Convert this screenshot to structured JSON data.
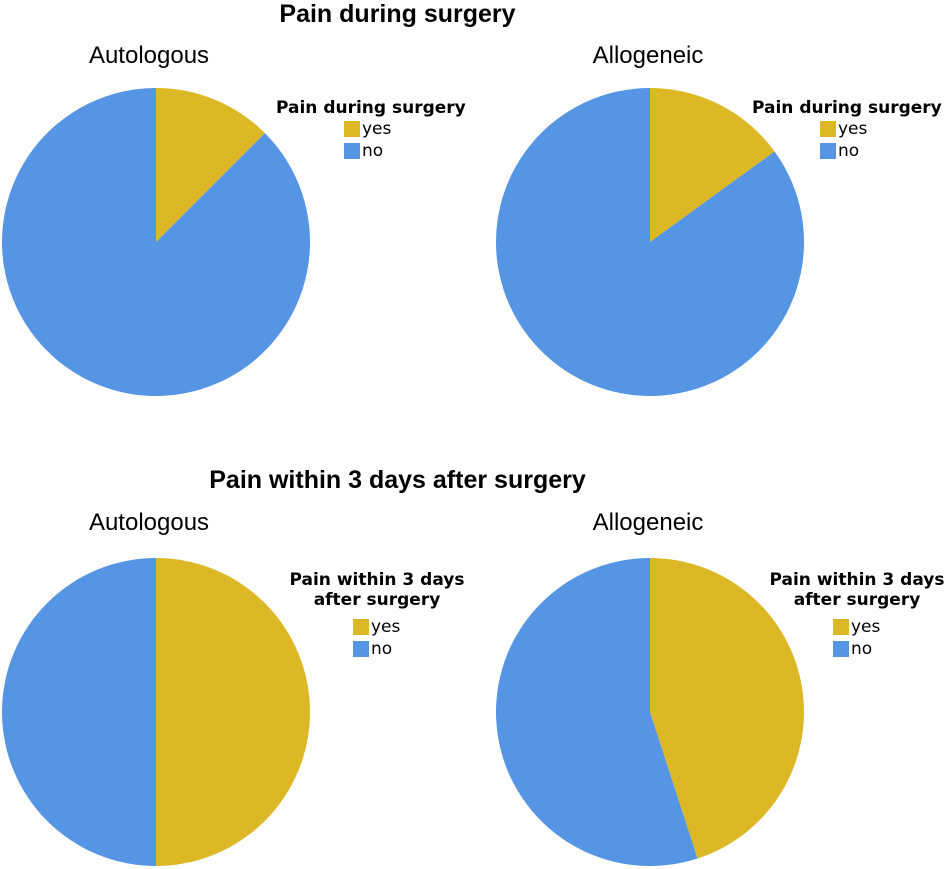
{
  "colors": {
    "yes": "#ddb826",
    "no": "#5595e3"
  },
  "chart_data": [
    {
      "type": "pie",
      "title": "Pain during surgery",
      "subtitle": "Autologous",
      "legend_title": "Pain during surgery",
      "legend": "right",
      "slices": [
        {
          "label": "yes",
          "value": 12.5
        },
        {
          "label": "no",
          "value": 87.5
        }
      ]
    },
    {
      "type": "pie",
      "title": "Pain during surgery",
      "subtitle": "Allogeneic",
      "legend_title": "Pain during surgery",
      "legend": "right",
      "slices": [
        {
          "label": "yes",
          "value": 15
        },
        {
          "label": "no",
          "value": 85
        }
      ]
    },
    {
      "type": "pie",
      "title": "Pain within 3 days after surgery",
      "subtitle": "Autologous",
      "legend_title": "Pain within 3 days after surgery",
      "legend": "right",
      "slices": [
        {
          "label": "yes",
          "value": 50
        },
        {
          "label": "no",
          "value": 50
        }
      ]
    },
    {
      "type": "pie",
      "title": "Pain within 3 days after surgery",
      "subtitle": "Allogeneic",
      "legend_title": "Pain within 3 days after surgery",
      "legend": "right",
      "slices": [
        {
          "label": "yes",
          "value": 45
        },
        {
          "label": "no",
          "value": 55
        }
      ]
    }
  ]
}
